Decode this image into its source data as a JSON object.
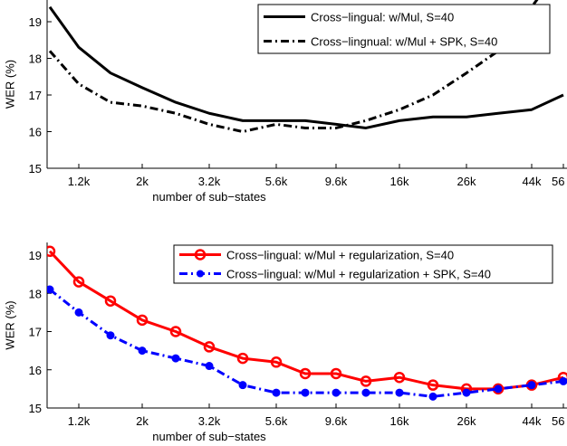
{
  "chart_data": [
    {
      "type": "line",
      "xlabel": "number of sub−states",
      "ylabel": "WER (%)",
      "ylim": [
        15,
        19.5
      ],
      "yticks": [
        "15",
        "16",
        "17",
        "18",
        "19"
      ],
      "x_scale": "log",
      "xtick_labels": [
        "1.2k",
        "2k",
        "3.2k",
        "5.6k",
        "9.6k",
        "16k",
        "26k",
        "44k",
        "56"
      ],
      "categories": [
        "1k",
        "1.2k",
        "1.5k",
        "2k",
        "2.5k",
        "3.2k",
        "4k",
        "5.6k",
        "7k",
        "9.6k",
        "12k",
        "16k",
        "20k",
        "26k",
        "33k",
        "44k",
        "56k"
      ],
      "legend_position": "top-right",
      "grid": false,
      "series": [
        {
          "name": "Cross−lingual: w/Mul, S=40",
          "style": "solid",
          "color": "#000000",
          "values": [
            19.4,
            18.3,
            17.6,
            17.2,
            16.8,
            16.5,
            16.3,
            16.3,
            16.3,
            16.2,
            16.1,
            16.3,
            16.4,
            16.4,
            16.5,
            16.6,
            17.0
          ]
        },
        {
          "name": "Cross−lingnual: w/Mul + SPK, S=40",
          "style": "dash-dot",
          "color": "#000000",
          "values": [
            18.2,
            17.3,
            16.8,
            16.7,
            16.5,
            16.2,
            16.0,
            16.2,
            16.1,
            16.1,
            16.3,
            16.6,
            17.0,
            17.6,
            18.2,
            19.4,
            20.6
          ]
        }
      ]
    },
    {
      "type": "line",
      "xlabel": "number of sub−states",
      "ylabel": "WER (%)",
      "ylim": [
        15,
        19.3
      ],
      "yticks": [
        "15",
        "16",
        "17",
        "18",
        "19"
      ],
      "x_scale": "log",
      "xtick_labels": [
        "1.2k",
        "2k",
        "3.2k",
        "5.6k",
        "9.6k",
        "16k",
        "26k",
        "44k",
        "56"
      ],
      "categories": [
        "1k",
        "1.2k",
        "1.5k",
        "2k",
        "2.5k",
        "3.2k",
        "4k",
        "5.6k",
        "7k",
        "9.6k",
        "12k",
        "16k",
        "20k",
        "26k",
        "33k",
        "44k",
        "56k"
      ],
      "legend_position": "top-right",
      "grid": false,
      "series": [
        {
          "name": "Cross−lingual: w/Mul + regularization, S=40",
          "style": "solid",
          "marker": "circle",
          "color": "#ff0000",
          "values": [
            19.1,
            18.3,
            17.8,
            17.3,
            17.0,
            16.6,
            16.3,
            16.2,
            15.9,
            15.9,
            15.7,
            15.8,
            15.6,
            15.5,
            15.5,
            15.6,
            15.8
          ]
        },
        {
          "name": "Cross−lingual: w/Mul + regularization + SPK, S=40",
          "style": "dash-dot",
          "marker": "dot",
          "color": "#0000ff",
          "values": [
            18.1,
            17.5,
            16.9,
            16.5,
            16.3,
            16.1,
            15.6,
            15.4,
            15.4,
            15.4,
            15.4,
            15.4,
            15.3,
            15.4,
            15.5,
            15.6,
            15.7
          ]
        }
      ]
    }
  ]
}
